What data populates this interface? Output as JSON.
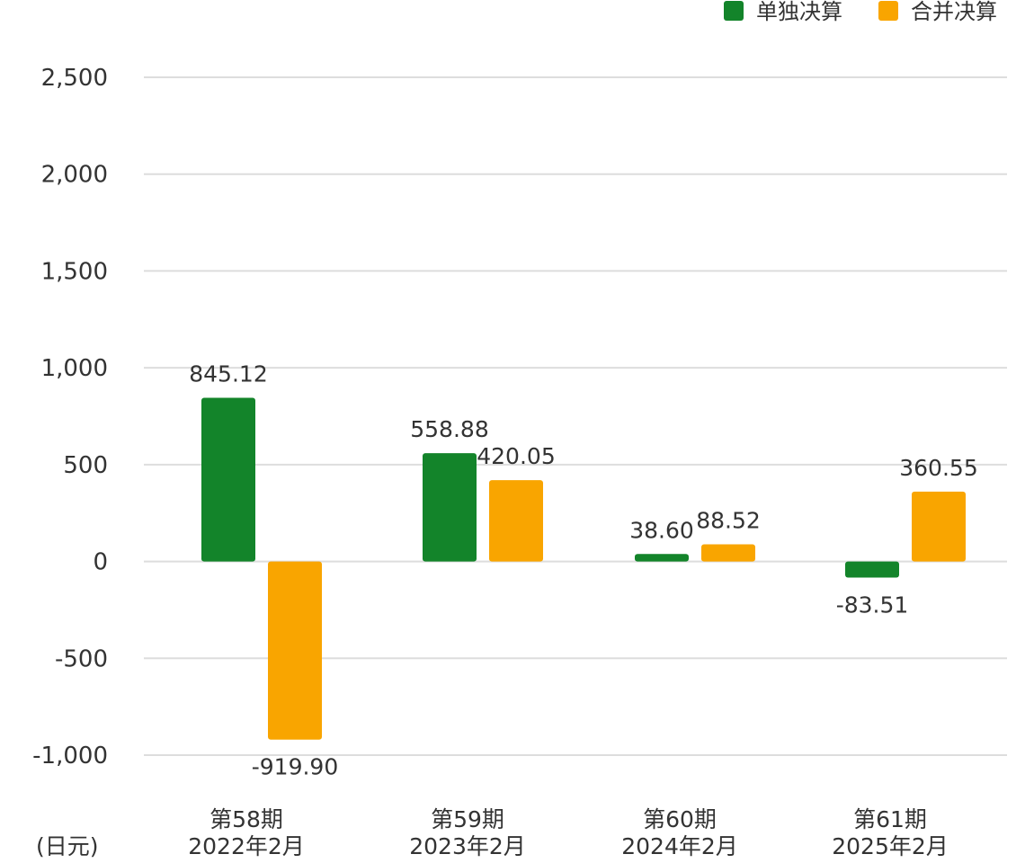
{
  "chart_data": {
    "type": "bar",
    "title": "",
    "xlabel": "",
    "ylabel": "",
    "unit_label": "(日元)",
    "categories": [
      {
        "line1": "第58期",
        "line2": "2022年2月"
      },
      {
        "line1": "第59期",
        "line2": "2023年2月"
      },
      {
        "line1": "第60期",
        "line2": "2024年2月"
      },
      {
        "line1": "第61期",
        "line2": "2025年2月"
      }
    ],
    "series": [
      {
        "name": "单独决算",
        "color": "#13842a",
        "values": [
          845.12,
          558.88,
          38.6,
          -83.51
        ],
        "labels": [
          "845.12",
          "558.88",
          "38.60",
          "-83.51"
        ]
      },
      {
        "name": "合并决算",
        "color": "#f9a500",
        "values": [
          -919.9,
          420.05,
          88.52,
          360.55
        ],
        "labels": [
          "-919.90",
          "420.05",
          "88.52",
          "360.55"
        ]
      }
    ],
    "yticks": [
      {
        "value": 2500,
        "label": "2,500"
      },
      {
        "value": 2000,
        "label": "2,000"
      },
      {
        "value": 1500,
        "label": "1,500"
      },
      {
        "value": 1000,
        "label": "1,000"
      },
      {
        "value": 500,
        "label": "500"
      },
      {
        "value": 0,
        "label": "0"
      },
      {
        "value": -500,
        "label": "-500"
      },
      {
        "value": -1000,
        "label": "-1,000"
      }
    ],
    "ylim": [
      -1000,
      2500
    ],
    "grid": true,
    "legend_position": "top-right"
  }
}
